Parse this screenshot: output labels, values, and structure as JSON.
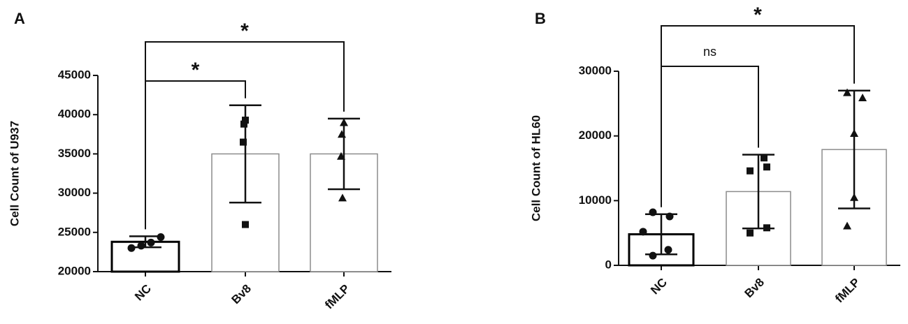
{
  "chart_data": [
    {
      "type": "bar",
      "panel": "A",
      "y_label": "Cell Count of U937",
      "categories": [
        "NC",
        "Bv8",
        "fMLP"
      ],
      "values": [
        23800,
        35000,
        35000
      ],
      "errors": [
        700,
        6200,
        4500
      ],
      "points": [
        [
          23000,
          23300,
          23700,
          24400
        ],
        [
          39300,
          38800,
          36500,
          26000
        ],
        [
          39000,
          37500,
          34700,
          29400
        ]
      ],
      "markers": [
        "circle",
        "square",
        "triangle"
      ],
      "bar_edge_colors": [
        "#000000",
        "#8c8c8c",
        "#8c8c8c"
      ],
      "color": "#111111",
      "ylim": [
        20000,
        45000
      ],
      "yticks": [
        20000,
        25000,
        30000,
        35000,
        40000,
        45000
      ],
      "significance": [
        {
          "groups": [
            "NC",
            "Bv8"
          ],
          "label": "*"
        },
        {
          "groups": [
            "NC",
            "fMLP"
          ],
          "label": "*"
        }
      ]
    },
    {
      "type": "bar",
      "panel": "B",
      "y_label": "Cell Count of HL60",
      "categories": [
        "NC",
        "Bv8",
        "fMLP"
      ],
      "values": [
        4800,
        11400,
        17900
      ],
      "errors": [
        3100,
        5700,
        9100
      ],
      "points": [
        [
          8200,
          7550,
          5200,
          2400,
          1500
        ],
        [
          16600,
          15200,
          14600,
          5800,
          5000
        ],
        [
          26700,
          25900,
          20400,
          10500,
          6100
        ]
      ],
      "markers": [
        "circle",
        "square",
        "triangle"
      ],
      "bar_edge_colors": [
        "#000000",
        "#8c8c8c",
        "#8c8c8c"
      ],
      "color": "#111111",
      "ylim": [
        0,
        30000
      ],
      "yticks": [
        0,
        10000,
        20000,
        30000
      ],
      "significance": [
        {
          "groups": [
            "NC",
            "Bv8"
          ],
          "label": "ns"
        },
        {
          "groups": [
            "NC",
            "fMLP"
          ],
          "label": "*"
        }
      ]
    }
  ]
}
